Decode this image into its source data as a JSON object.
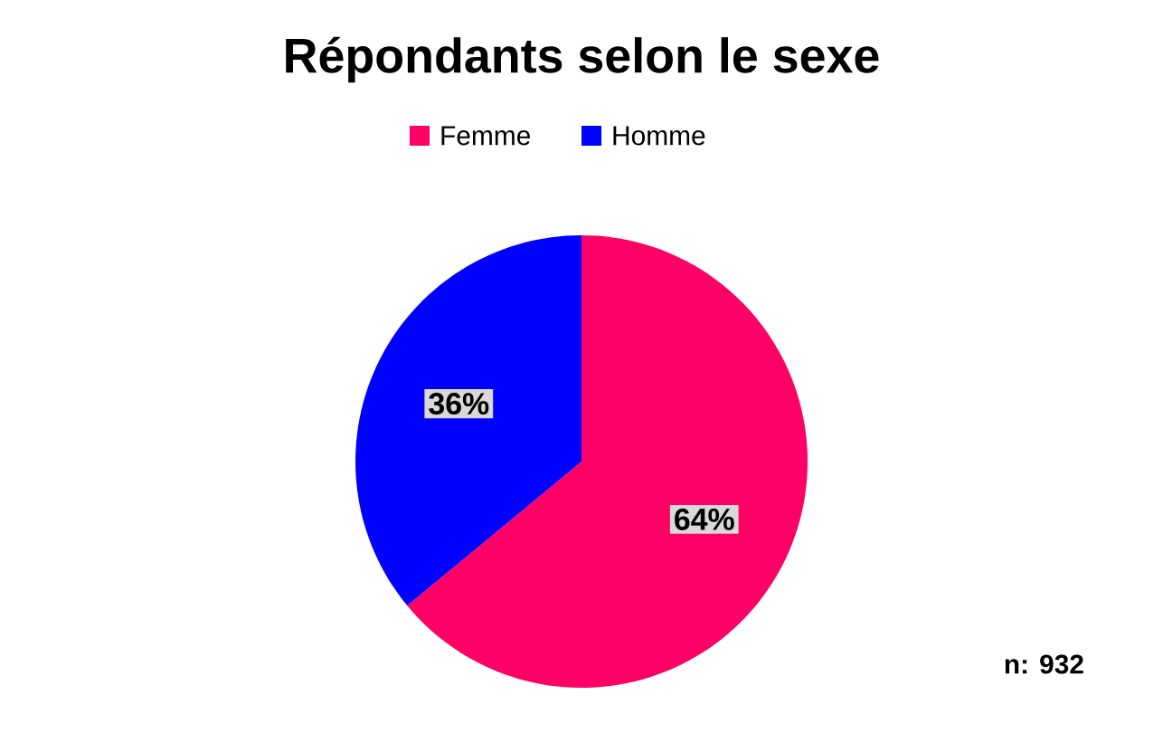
{
  "chart_data": {
    "type": "pie",
    "title": "Répondants selon le sexe",
    "categories": [
      "Femme",
      "Homme"
    ],
    "values": [
      64,
      36
    ],
    "colors": [
      "#ff0066",
      "#0000ff"
    ],
    "value_labels": [
      "64%",
      "36%"
    ],
    "legend": "top",
    "annotations": [
      "n: 932"
    ]
  }
}
